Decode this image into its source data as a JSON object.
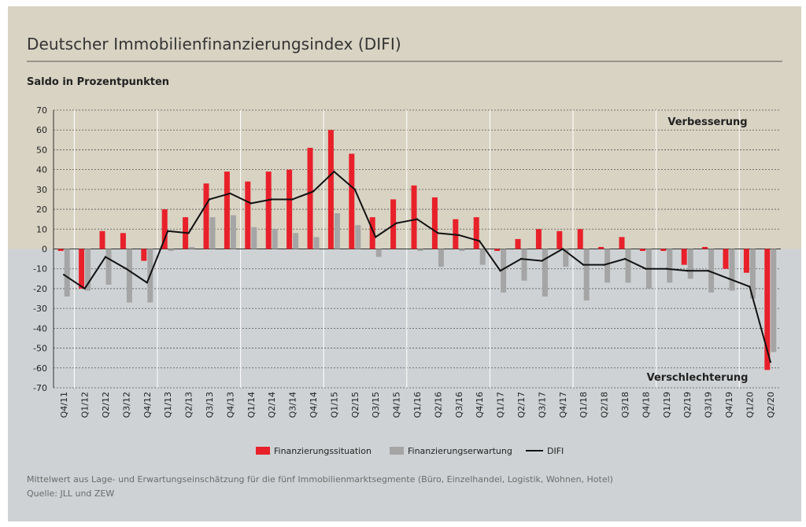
{
  "title": "Deutscher Immobilienfinanzierungsindex (DIFI)",
  "subtitle": "Saldo in Prozentpunkten",
  "zone_labels": {
    "positive": "Verbesserung",
    "negative": "Verschlechterung"
  },
  "footnote": "Mittelwert aus Lage- und Erwartungseinschätzung für die fünf Immobilienmarktsegmente (Büro, Einzelhandel, Logistik, Wohnen, Hotel)",
  "source": "Quelle: JLL und ZEW",
  "colors": {
    "background_top": "#d8d3c3",
    "background_bottom": "#cfd2d4",
    "bar_situation": "#e8202a",
    "bar_expectation": "#a5a5a5",
    "line_difi": "#111111"
  },
  "chart_data": {
    "type": "bar",
    "ylim": [
      -70,
      70
    ],
    "yticks": [
      70,
      60,
      50,
      40,
      30,
      20,
      10,
      0,
      -10,
      -20,
      -30,
      -40,
      -50,
      -60,
      -70
    ],
    "categories": [
      "Q4/11",
      "Q1/12",
      "Q2/12",
      "Q3/12",
      "Q4/12",
      "Q1/13",
      "Q2/13",
      "Q3/13",
      "Q4/13",
      "Q1/14",
      "Q2/14",
      "Q3/14",
      "Q4/14",
      "Q1/15",
      "Q2/15",
      "Q3/15",
      "Q4/15",
      "Q1/16",
      "Q2/16",
      "Q3/16",
      "Q4/16",
      "Q1/17",
      "Q2/17",
      "Q3/17",
      "Q4/17",
      "Q1/18",
      "Q2/18",
      "Q3/18",
      "Q4/18",
      "Q1/19",
      "Q2/19",
      "Q3/19",
      "Q4/19",
      "Q1/20",
      "Q2/20"
    ],
    "series": [
      {
        "name": "Finanzierungssituation",
        "type": "bar",
        "values": [
          -1,
          -20,
          9,
          8,
          -6,
          20,
          16,
          33,
          39,
          34,
          39,
          40,
          51,
          60,
          48,
          16,
          25,
          32,
          26,
          15,
          16,
          -1,
          5,
          10,
          9,
          10,
          1,
          6,
          -1,
          -1,
          -8,
          1,
          -10,
          -12,
          -61
        ]
      },
      {
        "name": "Finanzierungserwartung",
        "type": "bar",
        "values": [
          -24,
          -21,
          -18,
          -27,
          -27,
          -1,
          1,
          16,
          17,
          11,
          10,
          8,
          6,
          18,
          12,
          -4,
          0,
          -1,
          -9,
          -1,
          -8,
          -22,
          -16,
          -24,
          -9,
          -26,
          -17,
          -17,
          -20,
          -17,
          -15,
          -22,
          -21,
          -25,
          -52
        ]
      },
      {
        "name": "DIFI",
        "type": "line",
        "values": [
          -13,
          -20,
          -4,
          -10,
          -17,
          9,
          8,
          25,
          28,
          23,
          25,
          25,
          29,
          39,
          30,
          6,
          13,
          15,
          8,
          7,
          4,
          -11,
          -5,
          -6,
          0,
          -8,
          -8,
          -5,
          -10,
          -10,
          -11,
          -11,
          -15,
          -19,
          -57
        ]
      }
    ],
    "year_separators_after": [
      "Q4/11",
      "Q4/12",
      "Q4/13",
      "Q4/14",
      "Q4/15",
      "Q4/16",
      "Q4/17",
      "Q4/18",
      "Q4/19"
    ],
    "legend_position": "bottom-center",
    "grid": true
  }
}
